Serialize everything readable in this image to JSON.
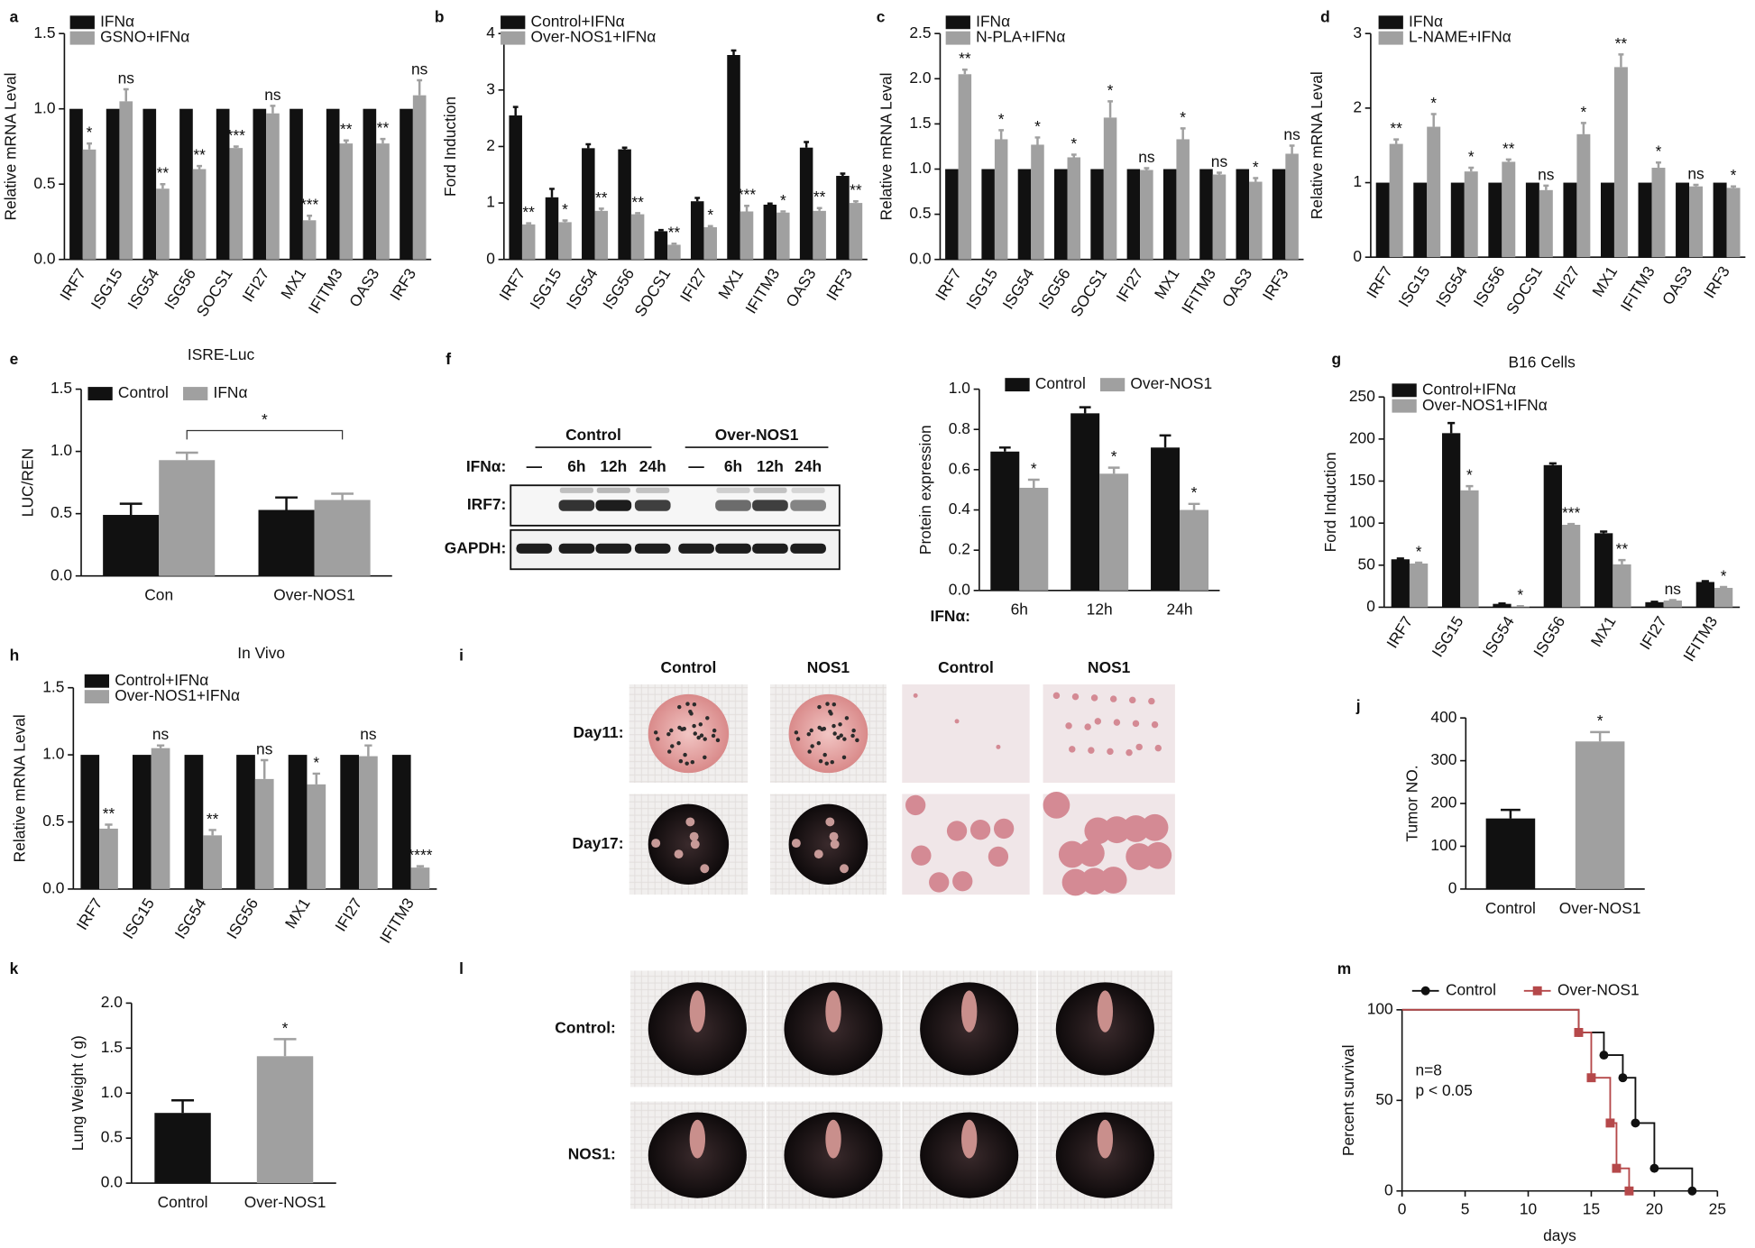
{
  "chart_data": [
    {
      "panel": "a",
      "type": "bar",
      "ylabel": "Relative mRNA Leval",
      "ylim": [
        0,
        1.5
      ],
      "yticks": [
        {
          "value": 0,
          "label": "0.0"
        },
        0.5,
        {
          "value": 1,
          "label": "1.0"
        },
        1.5
      ],
      "categories": [
        "IRF7",
        "ISG15",
        "ISG54",
        "ISG56",
        "SOCS1",
        "IFI27",
        "MX1",
        "IFITM3",
        "OAS3",
        "IRF3"
      ],
      "series": [
        {
          "name": "IFNα",
          "color": "#111111",
          "values": [
            1,
            1,
            1,
            1,
            1,
            1,
            1,
            1,
            1,
            1
          ]
        },
        {
          "name": "GSNO+IFNα",
          "color": "#a0a0a0",
          "values": [
            0.73,
            1.05,
            0.47,
            0.6,
            0.74,
            0.97,
            0.26,
            0.77,
            0.77,
            1.09
          ],
          "errors": [
            0.04,
            0.08,
            0.03,
            0.02,
            0.01,
            0.05,
            0.03,
            0.02,
            0.03,
            0.1
          ]
        }
      ],
      "annotations": [
        "*",
        "ns",
        "**",
        "**",
        "***",
        "ns",
        "***",
        "**",
        "**",
        "ns"
      ]
    },
    {
      "panel": "b",
      "type": "bar",
      "ylabel": "Ford Induction",
      "ylim": [
        0,
        4
      ],
      "yticks": [
        0,
        1,
        2,
        3,
        4
      ],
      "categories": [
        "IRF7",
        "ISG15",
        "ISG54",
        "ISG56",
        "SOCS1",
        "IFI27",
        "MX1",
        "IFITM3",
        "OAS3",
        "IRF3"
      ],
      "series": [
        {
          "name": "Control+IFNα",
          "color": "#111111",
          "values": [
            2.55,
            1.1,
            1.97,
            1.95,
            0.5,
            1.03,
            3.62,
            0.97,
            1.98,
            1.48
          ],
          "errors": [
            0.15,
            0.15,
            0.07,
            0.03,
            0.02,
            0.06,
            0.08,
            0.02,
            0.1,
            0.04
          ]
        },
        {
          "name": "Over-NOS1+IFNα",
          "color": "#a0a0a0",
          "values": [
            0.62,
            0.66,
            0.86,
            0.8,
            0.26,
            0.57,
            0.85,
            0.83,
            0.86,
            1.0
          ],
          "errors": [
            0.02,
            0.03,
            0.04,
            0.02,
            0.02,
            0.02,
            0.1,
            0.02,
            0.05,
            0.03
          ]
        }
      ],
      "annotations": [
        "**",
        "*",
        "**",
        "**",
        "**",
        "*",
        "***",
        "*",
        "**",
        "**"
      ]
    },
    {
      "panel": "c",
      "type": "bar",
      "ylabel": "Relative mRNA Leval",
      "ylim": [
        0,
        2.5
      ],
      "yticks": [
        {
          "value": 0,
          "label": "0.0"
        },
        0.5,
        {
          "value": 1,
          "label": "1.0"
        },
        1.5,
        {
          "value": 2,
          "label": "2.0"
        },
        2.5
      ],
      "categories": [
        "IRF7",
        "ISG15",
        "ISG54",
        "ISG56",
        "SOCS1",
        "IFI27",
        "MX1",
        "IFITM3",
        "OAS3",
        "IRF3"
      ],
      "series": [
        {
          "name": "IFNα",
          "color": "#111111",
          "values": [
            1,
            1,
            1,
            1,
            1,
            1,
            1,
            1,
            1,
            1
          ]
        },
        {
          "name": "N-PLA+IFNα",
          "color": "#a0a0a0",
          "values": [
            2.05,
            1.33,
            1.27,
            1.13,
            1.57,
            0.99,
            1.33,
            0.94,
            0.86,
            1.17
          ],
          "errors": [
            0.05,
            0.1,
            0.08,
            0.03,
            0.18,
            0.02,
            0.12,
            0.02,
            0.04,
            0.09
          ]
        }
      ],
      "annotations": [
        "**",
        "*",
        "*",
        "*",
        "*",
        "ns",
        "*",
        "ns",
        "*",
        "ns"
      ]
    },
    {
      "panel": "d",
      "type": "bar",
      "ylabel": "Relative mRNA Leval",
      "ylim": [
        0,
        3
      ],
      "yticks": [
        0,
        1,
        2,
        3
      ],
      "categories": [
        "IRF7",
        "ISG15",
        "ISG54",
        "ISG56",
        "SOCS1",
        "IFI27",
        "MX1",
        "IFITM3",
        "OAS3",
        "IRF3"
      ],
      "series": [
        {
          "name": "IFNα",
          "color": "#111111",
          "values": [
            1,
            1,
            1,
            1,
            1,
            1,
            1,
            1,
            1,
            1
          ]
        },
        {
          "name": "L-NAME+IFNα",
          "color": "#a0a0a0",
          "values": [
            1.52,
            1.75,
            1.15,
            1.28,
            0.9,
            1.65,
            2.55,
            1.2,
            0.95,
            0.93
          ],
          "errors": [
            0.06,
            0.17,
            0.05,
            0.03,
            0.06,
            0.15,
            0.17,
            0.07,
            0.02,
            0.02
          ]
        }
      ],
      "annotations": [
        "**",
        "*",
        "*",
        "**",
        "ns",
        "*",
        "**",
        "*",
        "ns",
        "*"
      ]
    },
    {
      "panel": "e",
      "type": "bar",
      "title": "ISRE-Luc",
      "ylabel": "LUC/REN",
      "ylim": [
        0,
        1.5
      ],
      "yticks": [
        {
          "value": 0,
          "label": "0.0"
        },
        0.5,
        {
          "value": 1,
          "label": "1.0"
        },
        1.5
      ],
      "categories": [
        "Con",
        "Over-NOS1"
      ],
      "series": [
        {
          "name": "Control",
          "color": "#111111",
          "values": [
            0.49,
            0.53
          ],
          "errors": [
            0.09,
            0.1
          ]
        },
        {
          "name": "IFNα",
          "color": "#a0a0a0",
          "values": [
            0.93,
            0.61
          ],
          "errors": [
            0.06,
            0.05
          ]
        }
      ],
      "bracket_label": "*"
    },
    {
      "panel": "f",
      "type": "bar",
      "ylabel": "Protein expression",
      "x_label": "IFNα:",
      "ylim": [
        0,
        1
      ],
      "yticks": [
        {
          "value": 0,
          "label": "0.0"
        },
        0.2,
        0.4,
        0.6,
        0.8,
        {
          "value": 1,
          "label": "1.0"
        }
      ],
      "categories": [
        "6h",
        "12h",
        "24h"
      ],
      "series": [
        {
          "name": "Control",
          "color": "#111111",
          "values": [
            0.69,
            0.88,
            0.71
          ],
          "errors": [
            0.02,
            0.03,
            0.06
          ]
        },
        {
          "name": "Over-NOS1",
          "color": "#a0a0a0",
          "values": [
            0.51,
            0.58,
            0.4
          ],
          "errors": [
            0.04,
            0.03,
            0.03
          ]
        }
      ],
      "annotations": [
        "*",
        "*",
        "*"
      ]
    },
    {
      "panel": "g",
      "type": "bar",
      "title": "B16 Cells",
      "ylabel": "Ford Induction",
      "ylim": [
        0,
        250
      ],
      "yticks": [
        0,
        50,
        100,
        150,
        200,
        250
      ],
      "categories": [
        "IRF7",
        "ISG15",
        "ISG54",
        "ISG56",
        "MX1",
        "IFI27",
        "IFITM3"
      ],
      "series": [
        {
          "name": "Control+IFNα",
          "color": "#111111",
          "values": [
            57,
            207,
            4,
            169,
            88,
            6,
            30
          ],
          "errors": [
            1,
            12,
            0.5,
            2,
            2,
            0.5,
            1
          ]
        },
        {
          "name": "Over-NOS1+IFNα",
          "color": "#a0a0a0",
          "values": [
            52,
            139,
            1,
            98,
            51,
            8,
            23
          ],
          "errors": [
            1,
            5,
            0.3,
            1,
            5,
            0.5,
            1
          ]
        }
      ],
      "annotations": [
        "*",
        "*",
        "*",
        "***",
        "**",
        "ns",
        "*"
      ]
    },
    {
      "panel": "h",
      "type": "bar",
      "title": "In Vivo",
      "ylabel": "Relative mRNA Leval",
      "ylim": [
        0,
        1.5
      ],
      "yticks": [
        {
          "value": 0,
          "label": "0.0"
        },
        0.5,
        {
          "value": 1,
          "label": "1.0"
        },
        1.5
      ],
      "categories": [
        "IRF7",
        "ISG15",
        "ISG54",
        "ISG56",
        "MX1",
        "IFI27",
        "IFITM3"
      ],
      "series": [
        {
          "name": "Control+IFNα",
          "color": "#111111",
          "values": [
            1,
            1,
            1,
            1,
            1,
            1,
            1
          ]
        },
        {
          "name": "Over-NOS1+IFNα",
          "color": "#a0a0a0",
          "values": [
            0.45,
            1.05,
            0.4,
            0.82,
            0.78,
            0.99,
            0.16
          ],
          "errors": [
            0.03,
            0.02,
            0.04,
            0.14,
            0.08,
            0.08,
            0.01
          ]
        }
      ],
      "annotations": [
        "**",
        "ns",
        "**",
        "ns",
        "*",
        "ns",
        "****"
      ]
    },
    {
      "panel": "j",
      "type": "bar",
      "ylabel": "Tumor NO.",
      "ylim": [
        0,
        400
      ],
      "yticks": [
        0,
        100,
        200,
        300,
        400
      ],
      "categories": [
        "Control",
        "Over-NOS1"
      ],
      "colors": [
        "#111111",
        "#a0a0a0"
      ],
      "series": [
        {
          "values": [
            165,
            345
          ],
          "errors": [
            20,
            22
          ]
        }
      ],
      "annotations": [
        null,
        "*"
      ]
    },
    {
      "panel": "k",
      "type": "bar",
      "ylabel": "Lung Weight ( g)",
      "ylim": [
        0,
        2
      ],
      "yticks": [
        {
          "value": 0,
          "label": "0.0"
        },
        0.5,
        {
          "value": 1,
          "label": "1.0"
        },
        1.5,
        {
          "value": 2,
          "label": "2.0"
        }
      ],
      "categories": [
        "Control",
        "Over-NOS1"
      ],
      "colors": [
        "#111111",
        "#a0a0a0"
      ],
      "series": [
        {
          "values": [
            0.78,
            1.41
          ],
          "errors": [
            0.14,
            0.19
          ]
        }
      ],
      "annotations": [
        null,
        "*"
      ]
    },
    {
      "panel": "m",
      "type": "step",
      "xlabel": "days",
      "ylabel": "Percent survival",
      "xlim": [
        0,
        25
      ],
      "xticks": [
        0,
        5,
        10,
        15,
        20,
        25
      ],
      "ylim": [
        0,
        100
      ],
      "yticks": [
        0,
        50,
        100
      ],
      "series": [
        {
          "name": "Control",
          "color": "#111111",
          "marker": "circle",
          "x": [
            0,
            14,
            16,
            17.5,
            18.5,
            20,
            23
          ],
          "values": [
            100,
            87.5,
            75,
            62.5,
            37.5,
            12.5,
            0
          ]
        },
        {
          "name": "Over-NOS1",
          "color": "#b5484a",
          "marker": "square",
          "x": [
            0,
            14,
            15,
            16.5,
            17,
            18
          ],
          "values": [
            100,
            87.5,
            62.5,
            37.5,
            12.5,
            0
          ]
        }
      ],
      "notes": [
        "n=8",
        "p < 0.05"
      ]
    }
  ],
  "blot": {
    "panel": "f",
    "groups": [
      "Control",
      "Over-NOS1"
    ],
    "row_label": "IFNα:",
    "lanes": [
      "—",
      "6h",
      "12h",
      "24h",
      "—",
      "6h",
      "12h",
      "24h"
    ],
    "bands": [
      "IRF7:",
      "GAPDH:"
    ]
  },
  "photos": {
    "panel": "i",
    "columns": [
      "Control",
      "NOS1",
      "Control",
      "NOS1"
    ],
    "rows": [
      "Day11:",
      "Day17:"
    ]
  },
  "photos2": {
    "panel": "l",
    "rows": [
      "Control:",
      "NOS1:"
    ]
  }
}
